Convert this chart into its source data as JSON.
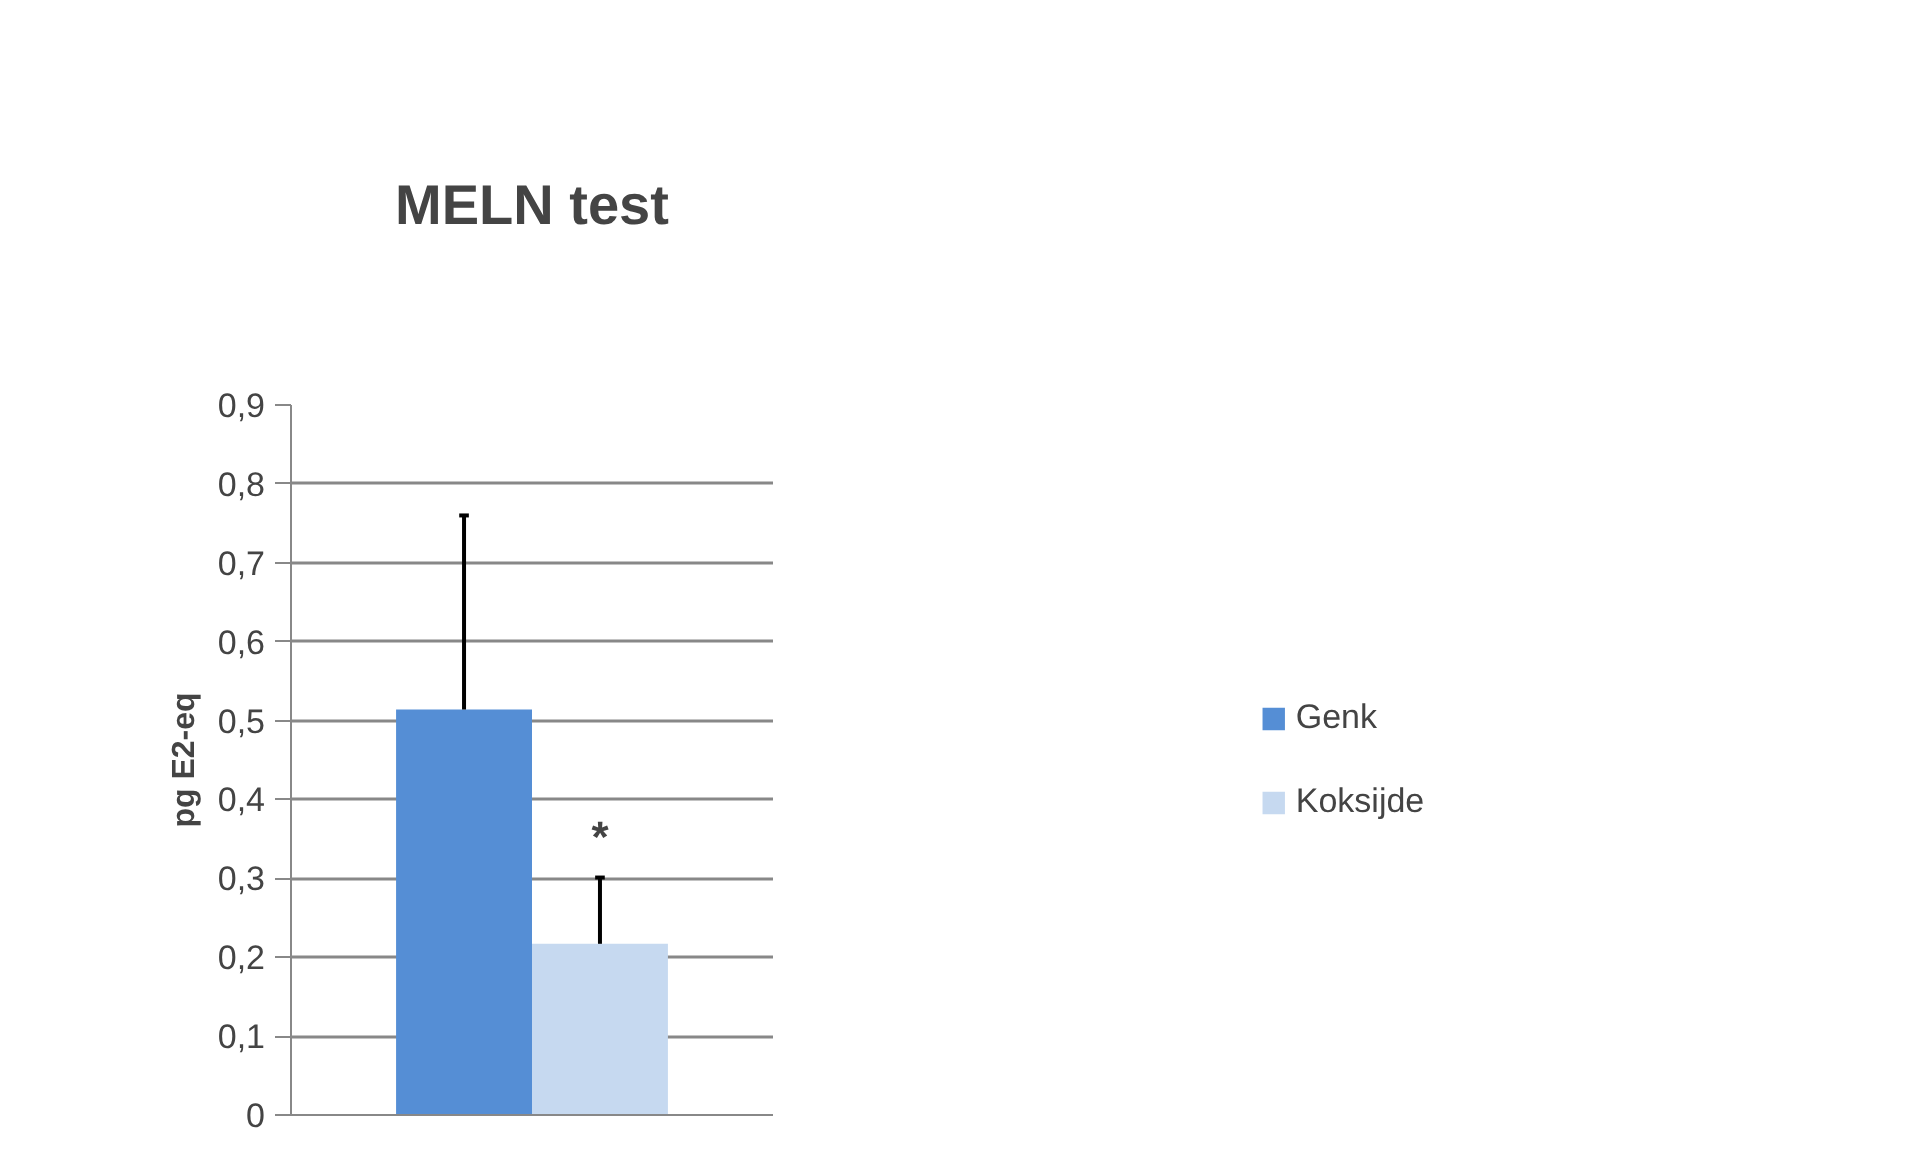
{
  "chart_data": {
    "type": "bar",
    "title": "MELN test",
    "ylabel": "pg E2-eq",
    "categories": [
      null
    ],
    "series": [
      {
        "name": "Genk",
        "color": "#558ed5",
        "values": [
          0.514
        ],
        "errors": [
          [
            0.514,
            0.76
          ]
        ]
      },
      {
        "name": "Koksijde",
        "color": "#c6d9f0",
        "values": [
          0.217
        ],
        "errors": [
          [
            0.217,
            0.301
          ]
        ]
      }
    ],
    "annotations": [
      "*"
    ],
    "ylim": [
      0,
      0.9
    ],
    "yticks": [
      0,
      {
        "value": 0.1,
        "label": "0,1"
      },
      {
        "value": 0.2,
        "label": "0,2"
      },
      {
        "value": 0.3,
        "label": "0,3"
      },
      {
        "value": 0.4,
        "label": "0,4"
      },
      {
        "value": 0.5,
        "label": "0,5"
      },
      {
        "value": 0.6,
        "label": "0,6"
      },
      {
        "value": 0.7,
        "label": "0,7"
      },
      {
        "value": 0.8,
        "label": "0,8"
      },
      {
        "value": 0.9,
        "label": "0,9"
      }
    ],
    "grid": "y",
    "legend": "right"
  }
}
